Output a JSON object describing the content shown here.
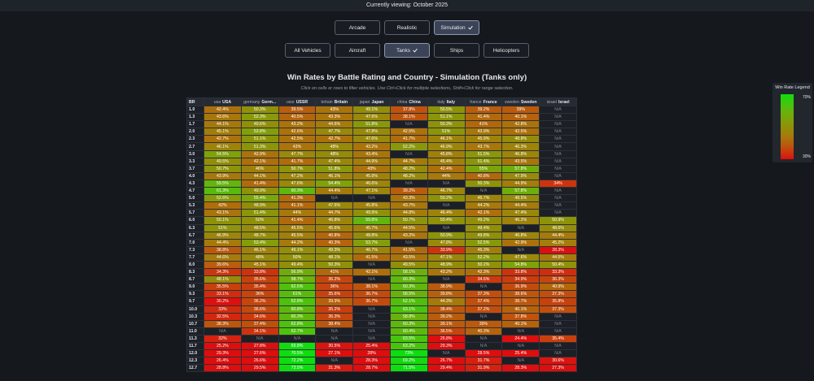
{
  "header": {
    "text": "Currently viewing: October 2025"
  },
  "modes": [
    {
      "label": "Arcade",
      "selected": false
    },
    {
      "label": "Realistic",
      "selected": false
    },
    {
      "label": "Simulation",
      "selected": true
    }
  ],
  "vehicle_types": [
    {
      "label": "All Vehicles",
      "selected": false
    },
    {
      "label": "Aircraft",
      "selected": false
    },
    {
      "label": "Tanks",
      "selected": true
    },
    {
      "label": "Ships",
      "selected": false
    },
    {
      "label": "Helicopters",
      "selected": false
    }
  ],
  "title": "Win Rates by Battle Rating and Country - Simulation (Tanks only)",
  "subtitle": "Click on cells or rows to filter vehicles. Use Ctrl+Click for multiple selections, Shift+Click for range selection.",
  "legend": {
    "title": "Win Rate Legend",
    "max": {
      "value": 70,
      "label": "70%"
    },
    "min": {
      "value": 30,
      "label": "30%"
    }
  },
  "table": {
    "br_header": "BR",
    "countries": [
      {
        "code": "usa",
        "name": "USA"
      },
      {
        "code": "germany",
        "name": "Germ..."
      },
      {
        "code": "ussr",
        "name": "USSR"
      },
      {
        "code": "britain",
        "name": "Britain"
      },
      {
        "code": "japan",
        "name": "Japan"
      },
      {
        "code": "china",
        "name": "China"
      },
      {
        "code": "italy",
        "name": "Italy"
      },
      {
        "code": "france",
        "name": "France"
      },
      {
        "code": "sweden",
        "name": "Sweden"
      },
      {
        "code": "israel",
        "name": "Israel"
      }
    ],
    "rows": [
      {
        "br": "1.0",
        "cells": [
          "42.4%",
          "50.3%",
          "39.5%",
          "43%",
          "49.1%",
          "37.8%",
          "50.5%",
          "39.2%",
          "39%",
          "N/A"
        ]
      },
      {
        "br": "1.3",
        "cells": [
          "43.6%",
          "52.3%",
          "40.5%",
          "43.3%",
          "47.6%",
          "38.1%",
          "51.1%",
          "41.4%",
          "40.1%",
          "N/A"
        ]
      },
      {
        "br": "1.7",
        "cells": [
          "44.1%",
          "49.6%",
          "43.2%",
          "44.6%",
          "51.8%",
          "N/A",
          "50.3%",
          "41%",
          "42.8%",
          "N/A"
        ]
      },
      {
        "br": "2.0",
        "cells": [
          "45.1%",
          "53.8%",
          "42.6%",
          "47.7%",
          "47.8%",
          "42.5%",
          "51%",
          "43.9%",
          "42.5%",
          "N/A"
        ]
      },
      {
        "br": "2.3",
        "cells": [
          "42.7%",
          "51.1%",
          "42.5%",
          "42.7%",
          "47.6%",
          "41.7%",
          "46.1%",
          "45.9%",
          "48.8%",
          "N/A"
        ]
      },
      {
        "br": "2.7",
        "cells": [
          "46.1%",
          "51.3%",
          "43%",
          "48%",
          "43.2%",
          "52.2%",
          "46.9%",
          "43.7%",
          "46.3%",
          "N/A"
        ]
      },
      {
        "br": "3.0",
        "cells": [
          "54.5%",
          "42.9%",
          "47.7%",
          "48%",
          "43.4%",
          "N/A",
          "45.8%",
          "51.5%",
          "46.8%",
          "N/A"
        ]
      },
      {
        "br": "3.3",
        "cells": [
          "49.5%",
          "42.1%",
          "41.7%",
          "47.4%",
          "44.9%",
          "44.7%",
          "45.4%",
          "51.4%",
          "43.5%",
          "N/A"
        ]
      },
      {
        "br": "3.7",
        "cells": [
          "50.7%",
          "46%",
          "50.7%",
          "51.8%",
          "43%",
          "48.2%",
          "42.4%",
          "55%",
          "57.8%",
          "N/A"
        ]
      },
      {
        "br": "4.0",
        "cells": [
          "43.9%",
          "44.1%",
          "47.2%",
          "46.1%",
          "45.9%",
          "48.2%",
          "44%",
          "40.8%",
          "47.9%",
          "N/A"
        ]
      },
      {
        "br": "4.3",
        "cells": [
          "59.5%",
          "41.4%",
          "47.6%",
          "54.4%",
          "46.6%",
          "N/A",
          "N/A",
          "50.3%",
          "44.9%",
          "34%"
        ]
      },
      {
        "br": "4.7",
        "cells": [
          "61.3%",
          "49.9%",
          "60.3%",
          "44.4%",
          "47.1%",
          "39.2%",
          "46.7%",
          "N/A",
          "57.8%",
          "N/A"
        ]
      },
      {
        "br": "5.0",
        "cells": [
          "52.6%",
          "55.4%",
          "41.3%",
          "N/A",
          "N/A",
          "43.3%",
          "50.2%",
          "46.7%",
          "48.5%",
          "N/A"
        ]
      },
      {
        "br": "5.3",
        "cells": [
          "42%",
          "48.9%",
          "41.1%",
          "47.6%",
          "45.8%",
          "43.7%",
          "N/A",
          "44.2%",
          "44.4%",
          "N/A"
        ]
      },
      {
        "br": "5.7",
        "cells": [
          "43.1%",
          "51.4%",
          "44%",
          "44.7%",
          "49.9%",
          "44.8%",
          "46.4%",
          "42.1%",
          "47.4%",
          "N/A"
        ]
      },
      {
        "br": "6.0",
        "cells": [
          "50.1%",
          "50%",
          "41.4%",
          "46.8%",
          "59.8%",
          "50.7%",
          "50.4%",
          "49.2%",
          "46.2%",
          "50.9%"
        ]
      },
      {
        "br": "6.3",
        "cells": [
          "51%",
          "48.5%",
          "45.5%",
          "45.6%",
          "45.7%",
          "44.5%",
          "N/A",
          "49.4%",
          "N/A",
          "48.6%"
        ]
      },
      {
        "br": "6.7",
        "cells": [
          "46.9%",
          "48.7%",
          "45.5%",
          "40.8%",
          "48.8%",
          "43.2%",
          "50.9%",
          "49.8%",
          "46.8%",
          "44.4%"
        ]
      },
      {
        "br": "7.0",
        "cells": [
          "44.4%",
          "53.4%",
          "44.2%",
          "40.3%",
          "53.7%",
          "N/A",
          "47.8%",
          "52.5%",
          "42.9%",
          "45.2%"
        ]
      },
      {
        "br": "7.3",
        "cells": [
          "38.8%",
          "46.1%",
          "49.1%",
          "49.3%",
          "46.7%",
          "41.5%",
          "33.9%",
          "45.3%",
          "N/A",
          "28.3%"
        ]
      },
      {
        "br": "7.7",
        "cells": [
          "44.6%",
          "48%",
          "50%",
          "48.1%",
          "41.5%",
          "43.5%",
          "47.1%",
          "52.2%",
          "47.6%",
          "44.5%"
        ]
      },
      {
        "br": "8.0",
        "cells": [
          "39.6%",
          "45.1%",
          "49.4%",
          "50.3%",
          "N/A",
          "49.5%",
          "48.9%",
          "50.2%",
          "54.8%",
          "50.4%"
        ]
      },
      {
        "br": "8.3",
        "cells": [
          "34.3%",
          "33.8%",
          "56.9%",
          "41%",
          "42.1%",
          "58.1%",
          "43.2%",
          "42.3%",
          "33.8%",
          "33.3%"
        ]
      },
      {
        "br": "8.7",
        "cells": [
          "48.1%",
          "35.6%",
          "58.7%",
          "36.2%",
          "N/A",
          "60.3%",
          "N/A",
          "34.6%",
          "34.9%",
          "36.3%"
        ]
      },
      {
        "br": "9.0",
        "cells": [
          "35.5%",
          "35.4%",
          "62.5%",
          "36%",
          "38.1%",
          "60.3%",
          "38.9%",
          "N/A",
          "36.9%",
          "40.9%"
        ]
      },
      {
        "br": "9.3",
        "cells": [
          "33.1%",
          "36%",
          "61%",
          "35.6%",
          "36.7%",
          "58.5%",
          "39.8%",
          "37.3%",
          "38.6%",
          "37.3%"
        ]
      },
      {
        "br": "9.7",
        "cells": [
          "30.2%",
          "36.2%",
          "62.8%",
          "39.9%",
          "36.7%",
          "62.1%",
          "44.3%",
          "37.4%",
          "38.7%",
          "35.8%"
        ]
      },
      {
        "br": "10.0",
        "cells": [
          "33%",
          "36.6%",
          "60.8%",
          "35.2%",
          "N/A",
          "63.1%",
          "38.4%",
          "37.2%",
          "40.1%",
          "37.3%"
        ]
      },
      {
        "br": "10.3",
        "cells": [
          "32.5%",
          "34.6%",
          "60.3%",
          "36.3%",
          "N/A",
          "58.8%",
          "39.2%",
          "N/A",
          "37.8%",
          "N/A"
        ]
      },
      {
        "br": "10.7",
        "cells": [
          "38.3%",
          "37.4%",
          "62.8%",
          "38.4%",
          "N/A",
          "60.3%",
          "39.1%",
          "39%",
          "40.1%",
          "N/A"
        ]
      },
      {
        "br": "11.0",
        "cells": [
          "N/A",
          "34.1%",
          "62.7%",
          "N/A",
          "N/A",
          "60.4%",
          "36.5%",
          "40.3%",
          "N/A",
          "N/A"
        ]
      },
      {
        "br": "11.3",
        "cells": [
          "32%",
          "N/A",
          "N/A",
          "N/A",
          "N/A",
          "63.5%",
          "26.8%",
          "N/A",
          "24.4%",
          "35.4%"
        ]
      },
      {
        "br": "11.7",
        "cells": [
          "25.2%",
          "27.8%",
          "69.8%",
          "30.5%",
          "25.4%",
          "63.2%",
          "29.3%",
          "N/A",
          "N/A",
          "N/A"
        ]
      },
      {
        "br": "12.0",
        "cells": [
          "29.3%",
          "27.6%",
          "70.5%",
          "27.1%",
          "28%",
          "73%",
          "N/A",
          "28.5%",
          "25.4%",
          "N/A"
        ]
      },
      {
        "br": "12.3",
        "cells": [
          "26.4%",
          "26.6%",
          "72.2%",
          "N/A",
          "28.3%",
          "69.2%",
          "26.7%",
          "31.7%",
          "N/A",
          "30.6%"
        ]
      },
      {
        "br": "12.7",
        "cells": [
          "28.8%",
          "29.5%",
          "73.5%",
          "31.3%",
          "28.7%",
          "71.5%",
          "29.4%",
          "31.9%",
          "28.3%",
          "27.3%"
        ]
      }
    ]
  }
}
